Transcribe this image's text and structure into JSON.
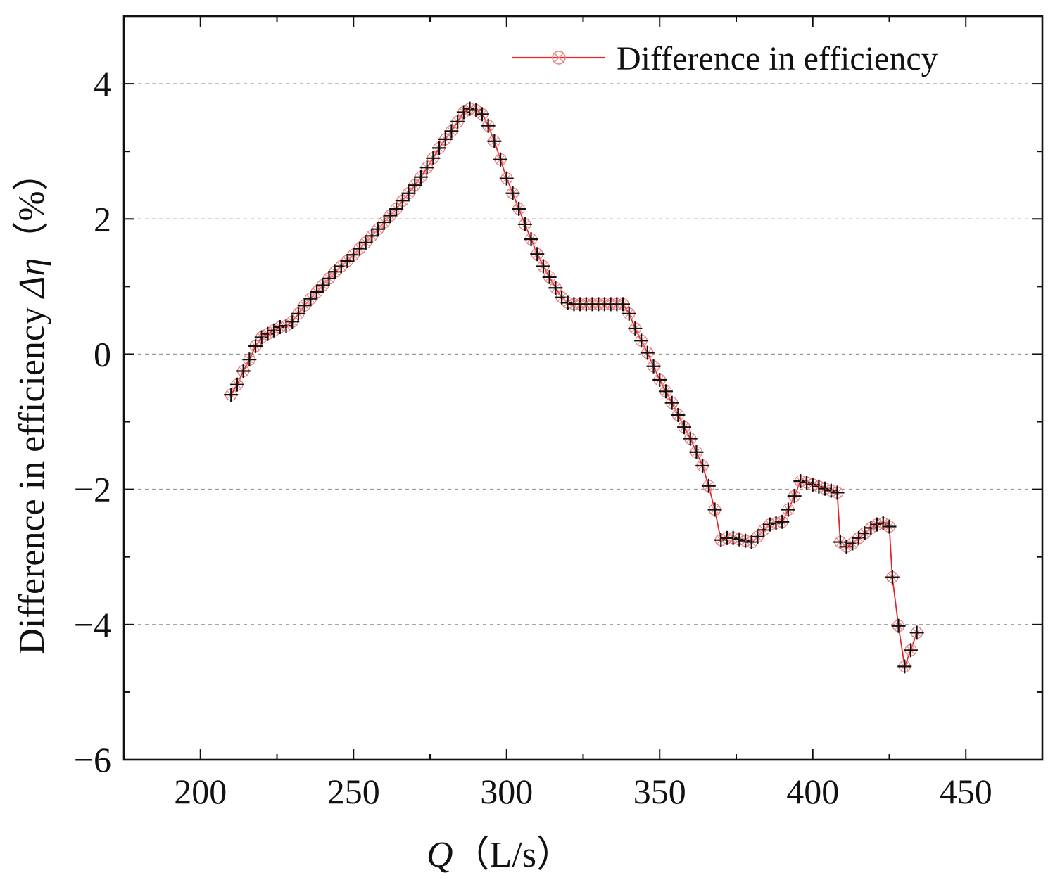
{
  "chart_data": {
    "type": "line",
    "title": "",
    "xlabel": "Q（L/s）",
    "xlabel_symbol": "Q",
    "xlabel_unit": "（L/s）",
    "ylabel": "Difference in efficiency Δη（%）",
    "ylabel_text": "Difference in efficiency ",
    "ylabel_symbol": "Δη",
    "ylabel_unit": "（%）",
    "xlim": [
      175,
      475
    ],
    "ylim": [
      -6,
      5
    ],
    "xticks": [
      200,
      250,
      300,
      350,
      400,
      450
    ],
    "yticks": [
      -6,
      -4,
      -2,
      0,
      2,
      4
    ],
    "xtick_labels": [
      "200",
      "250",
      "300",
      "350",
      "400",
      "450"
    ],
    "ytick_labels": [
      "−6",
      "−4",
      "−2",
      "0",
      "2",
      "4"
    ],
    "grid": "horizontal dashed at y = -4, -2, 0, 2, 4",
    "legend_position": "top-right",
    "series": [
      {
        "name": "Difference in efficiency",
        "color": "#e8262a",
        "marker_color": "#f08080",
        "point_marker_color": "#111111",
        "x": [
          210,
          212,
          214,
          216,
          218,
          220,
          222,
          224,
          226,
          228,
          230,
          232,
          234,
          236,
          238,
          240,
          242,
          244,
          246,
          248,
          250,
          252,
          254,
          256,
          258,
          260,
          262,
          264,
          266,
          268,
          270,
          272,
          274,
          276,
          278,
          280,
          282,
          284,
          286,
          288,
          290,
          292,
          294,
          296,
          298,
          300,
          302,
          304,
          306,
          308,
          310,
          312,
          314,
          316,
          318,
          320,
          322,
          324,
          326,
          328,
          330,
          332,
          334,
          336,
          338,
          340,
          342,
          344,
          346,
          348,
          350,
          352,
          354,
          356,
          358,
          360,
          362,
          364,
          366,
          368,
          370,
          372,
          374,
          376,
          378,
          380,
          382,
          384,
          386,
          388,
          390,
          392,
          394,
          396,
          398,
          400,
          402,
          404,
          406,
          408,
          409,
          411,
          413,
          415,
          417,
          419,
          421,
          423,
          425,
          426,
          428,
          430,
          432,
          434
        ],
        "values": [
          -0.6,
          -0.45,
          -0.25,
          -0.08,
          0.12,
          0.25,
          0.3,
          0.35,
          0.4,
          0.42,
          0.48,
          0.6,
          0.72,
          0.82,
          0.92,
          1.02,
          1.12,
          1.22,
          1.3,
          1.38,
          1.47,
          1.56,
          1.65,
          1.75,
          1.85,
          1.95,
          2.05,
          2.15,
          2.27,
          2.38,
          2.5,
          2.62,
          2.76,
          2.9,
          3.05,
          3.18,
          3.3,
          3.44,
          3.58,
          3.63,
          3.61,
          3.55,
          3.38,
          3.15,
          2.88,
          2.6,
          2.38,
          2.15,
          1.92,
          1.7,
          1.48,
          1.3,
          1.14,
          0.98,
          0.84,
          0.76,
          0.74,
          0.74,
          0.74,
          0.74,
          0.74,
          0.74,
          0.74,
          0.74,
          0.74,
          0.6,
          0.38,
          0.2,
          0.02,
          -0.18,
          -0.38,
          -0.55,
          -0.72,
          -0.9,
          -1.08,
          -1.25,
          -1.45,
          -1.65,
          -1.95,
          -2.3,
          -2.75,
          -2.72,
          -2.72,
          -2.74,
          -2.76,
          -2.78,
          -2.7,
          -2.6,
          -2.52,
          -2.5,
          -2.48,
          -2.3,
          -2.1,
          -1.88,
          -1.9,
          -1.93,
          -1.96,
          -1.99,
          -2.02,
          -2.05,
          -2.78,
          -2.85,
          -2.8,
          -2.72,
          -2.65,
          -2.57,
          -2.52,
          -2.5,
          -2.55,
          -3.3,
          -4.02,
          -4.62,
          -4.38,
          -4.12
        ]
      }
    ]
  }
}
